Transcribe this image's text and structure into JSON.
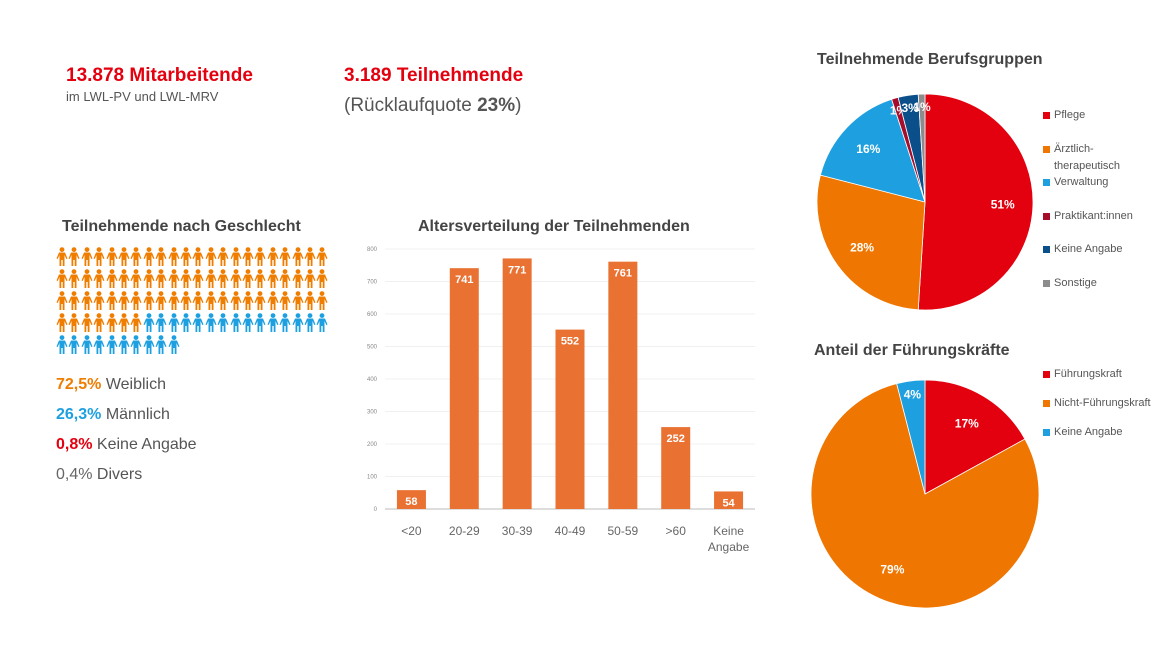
{
  "header": {
    "employees": "13.878 Mitarbeitende",
    "employees_sub": "im LWL-PV und LWL-MRV",
    "participants": "3.189 Teilnehmende",
    "return_prefix": "(Rücklaufquote ",
    "return_value": "23%",
    "return_suffix": ")"
  },
  "gender": {
    "title": "Teilnehmende nach Geschlecht",
    "icons": {
      "female_count": 73,
      "male_count": 25,
      "per_row": 22,
      "female_color": "#ef7d00",
      "male_color": "#1ea0e0"
    },
    "stats": [
      {
        "value": "72,5%",
        "label": " Weiblich",
        "color": "#ef7d00"
      },
      {
        "value": "26,3%",
        "label": " Männlich",
        "color": "#1ea0e0"
      },
      {
        "value": "0,8%",
        "label": " Keine Angabe",
        "color": "#e3000f"
      },
      {
        "value": "0,4%",
        "label": " Divers",
        "color": "#666666"
      }
    ]
  },
  "chart_data": [
    {
      "type": "bar",
      "title": "Altersverteilung der Teilnehmenden",
      "categories": [
        "<20",
        "20-29",
        "30-39",
        "40-49",
        "50-59",
        ">60",
        "Keine Angabe"
      ],
      "values": [
        58,
        741,
        771,
        552,
        761,
        252,
        54
      ],
      "ylim": [
        0,
        800
      ],
      "yticks": [
        0,
        100,
        200,
        300,
        400,
        500,
        600,
        700,
        800
      ],
      "grid": true,
      "color": "#e97132",
      "xlabel": "",
      "ylabel": ""
    },
    {
      "type": "pie",
      "title": "Teilnehmende Berufsgruppen",
      "legend": "right",
      "slices": [
        {
          "label": "Pflege",
          "value": 51,
          "text": "51%",
          "color": "#e3000f"
        },
        {
          "label": "Ärztlich-therapeutisch",
          "legend_lines": [
            "Ärztlich-",
            "therapeutisch"
          ],
          "value": 28,
          "text": "28%",
          "color": "#ef7600"
        },
        {
          "label": "Verwaltung",
          "value": 16,
          "text": "16%",
          "color": "#1ea0e0"
        },
        {
          "label": "Praktikant:innen",
          "value": 1,
          "text": "1%",
          "color": "#a50d2a"
        },
        {
          "label": "Keine Angabe",
          "value": 3,
          "text": "3%",
          "color": "#0b4f8a"
        },
        {
          "label": "Sonstige",
          "value": 1,
          "text": "1%",
          "color": "#8c8c8c"
        }
      ]
    },
    {
      "type": "pie",
      "title": "Anteil der Führungskräfte",
      "legend": "right",
      "slices": [
        {
          "label": "Führungskraft",
          "value": 17,
          "text": "17%",
          "color": "#e3000f"
        },
        {
          "label": "Nicht-Führungskraft",
          "value": 79,
          "text": "79%",
          "color": "#ef7600"
        },
        {
          "label": "Keine Angabe",
          "value": 4,
          "text": "4%",
          "color": "#1ea0e0"
        }
      ]
    }
  ]
}
